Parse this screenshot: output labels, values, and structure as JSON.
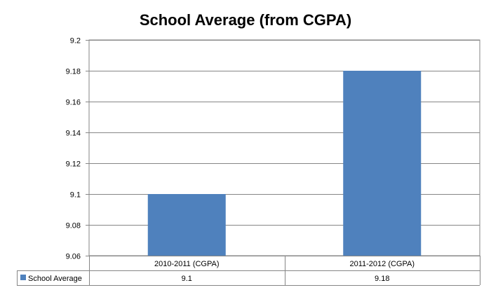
{
  "chart_data": {
    "type": "bar",
    "title": "School Average (from CGPA)",
    "categories": [
      "2010-2011 (CGPA)",
      "2011-2012 (CGPA)"
    ],
    "series": [
      {
        "name": "School Average",
        "values": [
          9.1,
          9.18
        ],
        "value_labels": [
          "9.1",
          "9.18"
        ],
        "color": "#4f81bd"
      }
    ],
    "ylim": [
      9.06,
      9.2
    ],
    "yticks": [
      9.06,
      9.08,
      9.1,
      9.12,
      9.14,
      9.16,
      9.18,
      9.2
    ],
    "ytick_labels": [
      "9.06",
      "9.08",
      "9.1",
      "9.12",
      "9.14",
      "9.16",
      "9.18",
      "9.2"
    ],
    "grid": true,
    "legend": "data-table-bottom-left",
    "data_table": true
  }
}
